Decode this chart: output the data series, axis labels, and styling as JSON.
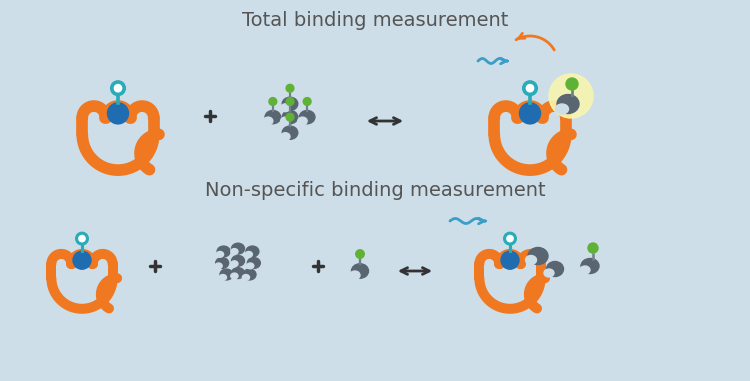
{
  "bg_color": "#cddee8",
  "title1": "Total binding measurement",
  "title2": "Non-specific binding measurement",
  "orange": "#f07820",
  "dark_gray": "#5a6572",
  "blue_dark": "#1f6cb0",
  "blue_light": "#2aabb8",
  "green": "#5fb236",
  "yellow_glow": "#f8f5b0",
  "text_color": "#555555",
  "title_fontsize": 14,
  "wavy_color": "#3a9ec8",
  "arrow_color": "#333333"
}
